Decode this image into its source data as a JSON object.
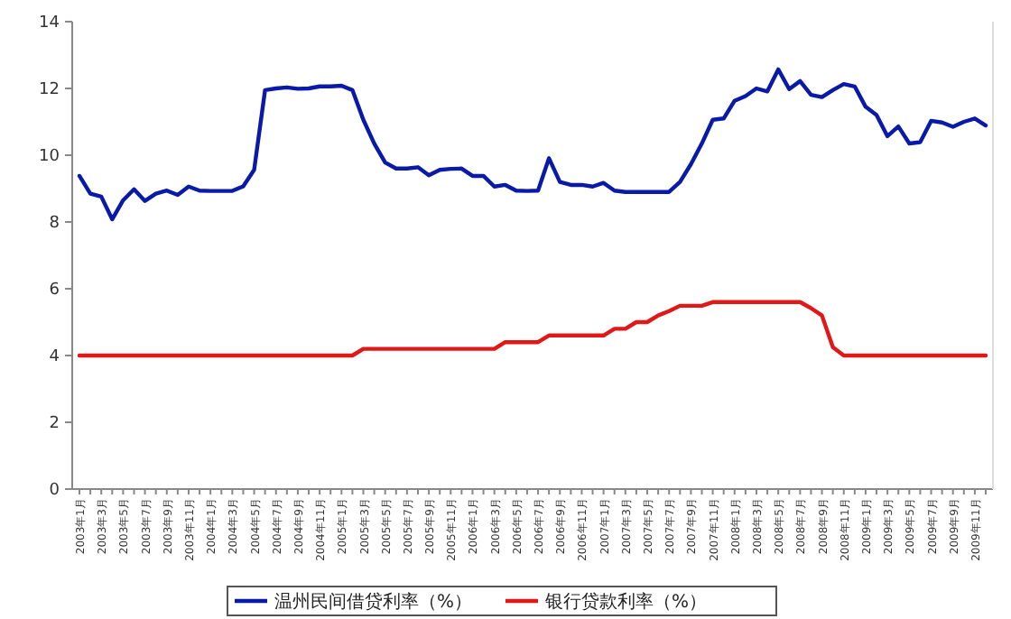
{
  "chart_data": {
    "type": "line",
    "categories": [
      "2003年1月",
      null,
      "2003年3月",
      null,
      "2003年5月",
      null,
      "2003年7月",
      null,
      "2003年9月",
      null,
      "2003年11月",
      null,
      "2004年1月",
      null,
      "2004年3月",
      null,
      "2004年5月",
      null,
      "2004年7月",
      null,
      "2004年9月",
      null,
      "2004年11月",
      null,
      "2005年1月",
      null,
      "2005年3月",
      null,
      "2005年5月",
      null,
      "2005年7月",
      null,
      "2005年9月",
      null,
      "2005年11月",
      null,
      "2006年1月",
      null,
      "2006年3月",
      null,
      "2006年5月",
      null,
      "2006年7月",
      null,
      "2006年9月",
      null,
      "2006年11月",
      null,
      "2007年1月",
      null,
      "2007年3月",
      null,
      "2007年5月",
      null,
      "2007年7月",
      null,
      "2007年9月",
      null,
      "2007年11月",
      null,
      "2008年1月",
      null,
      "2008年3月",
      null,
      "2008年5月",
      null,
      "2008年7月",
      null,
      "2008年9月",
      null,
      "2008年11月",
      null,
      "2009年1月",
      null,
      "2009年3月",
      null,
      "2009年5月",
      null,
      "2009年7月",
      null,
      "2009年9月",
      null,
      "2009年11月",
      null
    ],
    "series": [
      {
        "name": "温州民间借贷利率（%）",
        "color": "#0a1aa8",
        "values": [
          9.38,
          8.85,
          8.76,
          8.08,
          8.65,
          8.98,
          8.63,
          8.85,
          8.94,
          8.81,
          9.06,
          8.94,
          8.93,
          8.93,
          8.93,
          9.07,
          9.56,
          11.95,
          12.0,
          12.03,
          11.99,
          12.0,
          12.06,
          12.06,
          12.08,
          11.95,
          11.06,
          10.35,
          9.78,
          9.6,
          9.6,
          9.64,
          9.4,
          9.56,
          9.59,
          9.6,
          9.38,
          9.38,
          9.06,
          9.11,
          8.94,
          8.93,
          8.94,
          9.91,
          9.2,
          9.11,
          9.11,
          9.06,
          9.17,
          8.94,
          8.9,
          8.9,
          8.9,
          8.9,
          8.9,
          9.2,
          9.73,
          10.35,
          11.06,
          11.1,
          11.63,
          11.77,
          12.0,
          11.91,
          12.57,
          11.98,
          12.22,
          11.81,
          11.74,
          11.95,
          12.13,
          12.06,
          11.45,
          11.2,
          10.57,
          10.86,
          10.35,
          10.39,
          11.03,
          10.98,
          10.85,
          11.0,
          11.1,
          10.89
        ]
      },
      {
        "name": "银行贷款利率（%）",
        "color": "#e01818",
        "values": [
          4,
          4,
          4,
          4,
          4,
          4,
          4,
          4,
          4,
          4,
          4,
          4,
          4,
          4,
          4,
          4,
          4,
          4,
          4,
          4,
          4,
          4,
          4,
          4,
          4,
          4,
          4.2,
          4.2,
          4.2,
          4.2,
          4.2,
          4.2,
          4.2,
          4.2,
          4.2,
          4.2,
          4.2,
          4.2,
          4.2,
          4.4,
          4.4,
          4.4,
          4.4,
          4.6,
          4.6,
          4.6,
          4.6,
          4.6,
          4.6,
          4.8,
          4.8,
          5.0,
          5.0,
          5.2,
          5.33,
          5.49,
          5.49,
          5.49,
          5.6,
          5.6,
          5.6,
          5.6,
          5.6,
          5.6,
          5.6,
          5.6,
          5.6,
          5.42,
          5.2,
          4.25,
          4,
          4,
          4,
          4,
          4,
          4,
          4,
          4,
          4,
          4,
          4,
          4,
          4,
          4
        ]
      }
    ],
    "ylim": [
      0,
      14
    ],
    "yticks": [
      0,
      2,
      4,
      6,
      8,
      10,
      12,
      14
    ],
    "grid": false,
    "legend": "bottom",
    "marker": "none",
    "line_style": "solid"
  }
}
